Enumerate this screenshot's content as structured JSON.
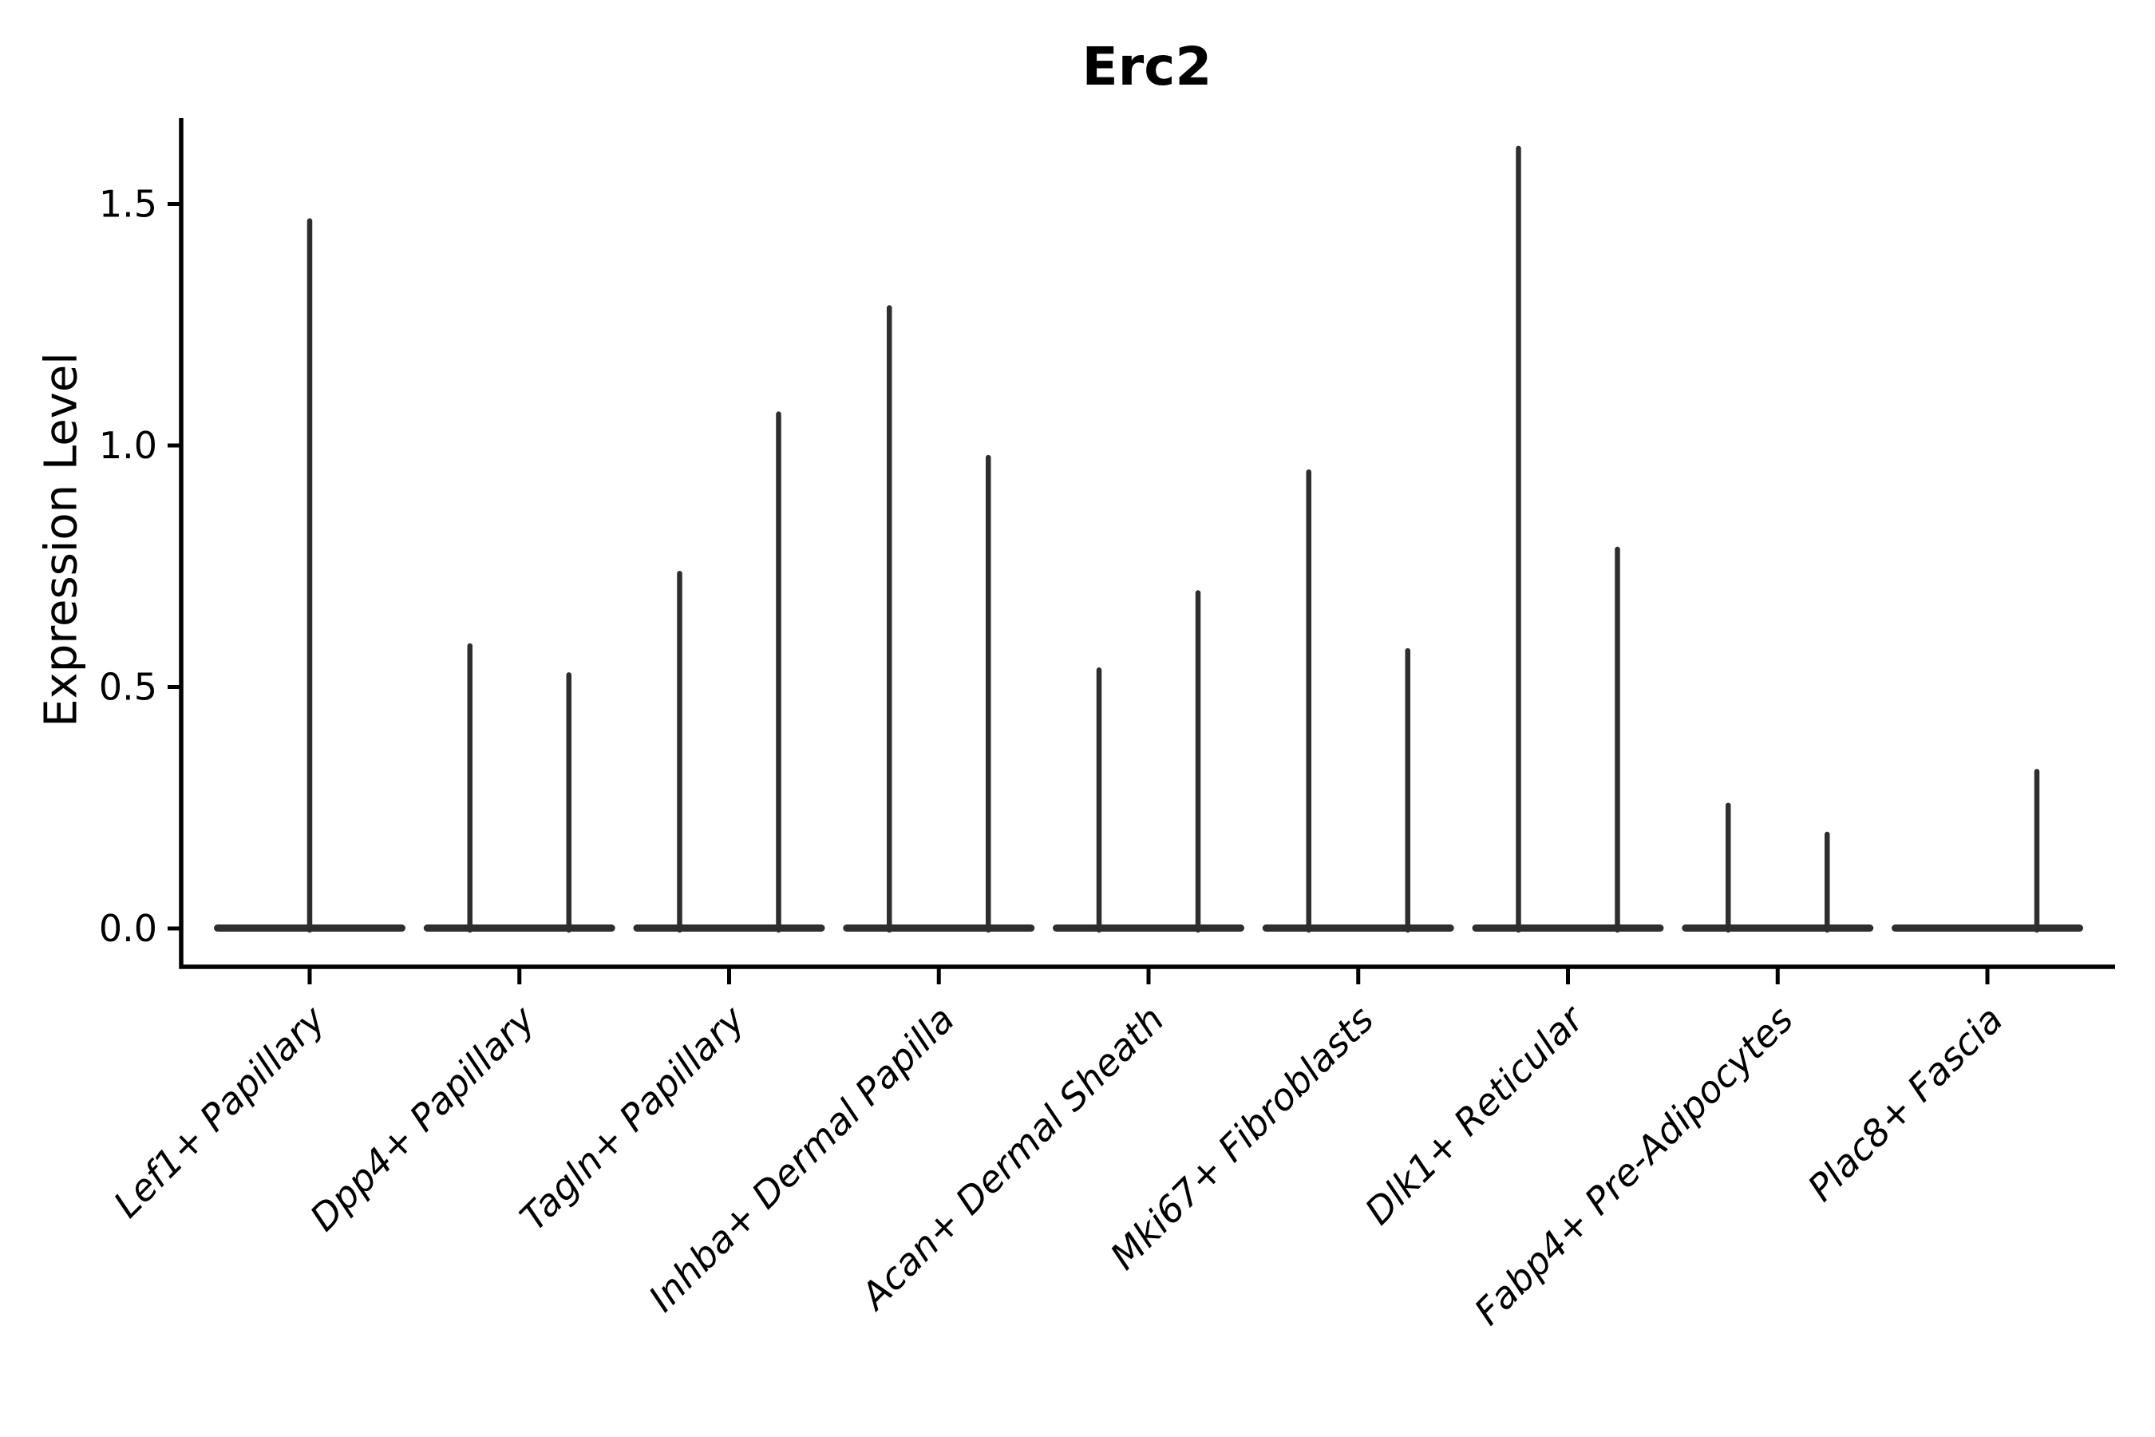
{
  "chart_data": {
    "type": "violin",
    "title": "Erc2",
    "ylabel": "Expression Level",
    "xlabel": "",
    "ylim": [
      -0.09,
      1.68
    ],
    "yticks": [
      {
        "label": "0.0",
        "value": 0.0
      },
      {
        "label": "0.5",
        "value": 0.5
      },
      {
        "label": "1.0",
        "value": 1.0
      },
      {
        "label": "1.5",
        "value": 1.5
      }
    ],
    "categories": [
      "Lef1+ Papillary",
      "Dpp4+ Papillary",
      "Tagln+ Papillary",
      "Inhba+ Dermal Papilla",
      "Acan+ Dermal Sheath",
      "Mki67+ Fibroblasts",
      "Dlk1+ Reticular",
      "Fabp4+ Pre-Adipocytes",
      "Plac8+ Fascia"
    ],
    "violins": [
      {
        "category": "Lef1+ Papillary",
        "spikes": [
          {
            "position": "center",
            "max_expression": 1.47
          }
        ]
      },
      {
        "category": "Dpp4+ Papillary",
        "spikes": [
          {
            "position": "left",
            "max_expression": 0.59
          },
          {
            "position": "right",
            "max_expression": 0.53
          }
        ]
      },
      {
        "category": "Tagln+ Papillary",
        "spikes": [
          {
            "position": "left",
            "max_expression": 0.74
          },
          {
            "position": "right",
            "max_expression": 1.07
          }
        ]
      },
      {
        "category": "Inhba+ Dermal Papilla",
        "spikes": [
          {
            "position": "left",
            "max_expression": 1.29
          },
          {
            "position": "right",
            "max_expression": 0.98
          }
        ]
      },
      {
        "category": "Acan+ Dermal Sheath",
        "spikes": [
          {
            "position": "left",
            "max_expression": 0.54
          },
          {
            "position": "right",
            "max_expression": 0.7
          }
        ]
      },
      {
        "category": "Mki67+ Fibroblasts",
        "spikes": [
          {
            "position": "left",
            "max_expression": 0.95
          },
          {
            "position": "right",
            "max_expression": 0.58
          }
        ]
      },
      {
        "category": "Dlk1+ Reticular",
        "spikes": [
          {
            "position": "left",
            "max_expression": 1.62
          },
          {
            "position": "right",
            "max_expression": 0.79
          }
        ]
      },
      {
        "category": "Fabp4+ Pre-Adipocytes",
        "spikes": [
          {
            "position": "left",
            "max_expression": 0.26
          },
          {
            "position": "right",
            "max_expression": 0.2
          }
        ]
      },
      {
        "category": "Plac8+ Fascia",
        "spikes": [
          {
            "position": "right",
            "max_expression": 0.33
          }
        ]
      }
    ],
    "baseline_value": 0.0,
    "legend": "none",
    "grid": false
  },
  "style": {
    "violin_color": "#2e2e2e",
    "axis_color": "#000000",
    "text_color": "#000000",
    "background": "#ffffff"
  }
}
